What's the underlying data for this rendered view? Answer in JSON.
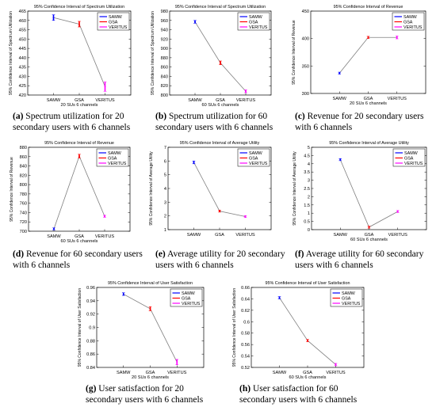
{
  "categories": [
    "SAMW",
    "GSA",
    "VERITUS"
  ],
  "colors": {
    "SAMW": "#0000ff",
    "GSA": "#ff0000",
    "VERITUS": "#ff00ff",
    "line": "#7f7f7f"
  },
  "legend": [
    "SAMW",
    "GSA",
    "VERITUS"
  ],
  "captions": [
    {
      "letter": "(a)",
      "text": "Spectrum utilization for 20 secondary users with 6 channels"
    },
    {
      "letter": "(b)",
      "text": "Spectrum utilization for 60 secondary users with 6 channels"
    },
    {
      "letter": "(c)",
      "text": "Revenue for 20 secondary users with 6 channels"
    },
    {
      "letter": "(d)",
      "text": "Revenue for 60 secondary users with 6 channels"
    },
    {
      "letter": "(e)",
      "text": "Average utility for 20 secondary users with 6 channels"
    },
    {
      "letter": "(f)",
      "text": "Average utility for 60 secondary users with 6 channels"
    },
    {
      "letter": "(g)",
      "text": "User satisfaction for 20 secondary users with 6 channels"
    },
    {
      "letter": "(h)",
      "text": "User satisfaction for 60 secondary users with 6 channels"
    }
  ],
  "chart_data": [
    {
      "type": "line",
      "title": "95% Confidence Interval of Spectrum Utilization",
      "ylabel": "95% Confidence Interval of Spectrum Utilization",
      "xlabel": "20 SUs 6 channels",
      "ylim": [
        420,
        465
      ],
      "yticks": [
        420,
        425,
        430,
        435,
        440,
        445,
        450,
        455,
        460,
        465
      ],
      "values": [
        461.5,
        458,
        424.5
      ],
      "err": [
        1.5,
        1.5,
        2.5
      ],
      "legend_position": "top-right"
    },
    {
      "type": "line",
      "title": "95% Confidence Interval of Spectrum Utilization",
      "ylabel": "95% Confidence Interval of Spectrum Utilization",
      "xlabel": "60 SUs 6 channels",
      "ylim": [
        800,
        980
      ],
      "yticks": [
        800,
        820,
        840,
        860,
        880,
        900,
        920,
        940,
        960,
        980
      ],
      "values": [
        957,
        869,
        808
      ],
      "err": [
        3,
        4,
        3
      ],
      "legend_position": "top-right"
    },
    {
      "type": "line",
      "title": "95% Confidence Interval of Revenue",
      "ylabel": "95% Confidence Interval of Revenue",
      "xlabel": "20 SUs 6 channels",
      "ylim": [
        300,
        450
      ],
      "yticks": [
        300,
        350,
        400,
        450
      ],
      "values": [
        337,
        402,
        402
      ],
      "err": [
        1,
        2,
        2.5
      ],
      "legend_position": "top-right"
    },
    {
      "type": "line",
      "title": "95% Confidence Interval of Revenue",
      "ylabel": "95% Confidence Interval of Revenue",
      "xlabel": "60 SUs 6 channels",
      "ylim": [
        700,
        880
      ],
      "yticks": [
        700,
        720,
        740,
        760,
        780,
        800,
        820,
        840,
        860,
        880
      ],
      "values": [
        705,
        861,
        732
      ],
      "err": [
        2,
        4,
        2
      ],
      "legend_position": "top-right"
    },
    {
      "type": "line",
      "title": "95% Confidence Interval of Average Utility",
      "ylabel": "95% Confidence Interval of Average Utility",
      "xlabel": "",
      "ylim": [
        1,
        7
      ],
      "yticks": [
        1,
        2,
        3,
        4,
        5,
        6,
        7
      ],
      "values": [
        5.9,
        2.35,
        1.95
      ],
      "err": [
        0.1,
        0.05,
        0.03
      ],
      "legend_position": "top-right"
    },
    {
      "type": "line",
      "title": "95% Confidence Interval of Average Utility",
      "ylabel": "95% Confidence Interval of Average Utility",
      "xlabel": "60 SUs 6 channels",
      "ylim": [
        0,
        5
      ],
      "yticks": [
        0,
        0.5,
        1,
        1.5,
        2,
        2.5,
        3,
        3.5,
        4,
        4.5,
        5
      ],
      "values": [
        4.25,
        0.15,
        1.1
      ],
      "err": [
        0.05,
        0.04,
        0.03
      ],
      "legend_position": "top-right"
    },
    {
      "type": "line",
      "title": "95% Confidence Interval of User Satisfaction",
      "ylabel": "95% Confidence Interval of User Satisfaction",
      "xlabel": "20 SUs 6 channels",
      "ylim": [
        0.84,
        0.96
      ],
      "yticks": [
        0.84,
        0.86,
        0.88,
        0.9,
        0.92,
        0.94,
        0.96
      ],
      "values": [
        0.95,
        0.928,
        0.848
      ],
      "err": [
        0.002,
        0.003,
        0.004
      ],
      "legend_position": "top-right"
    },
    {
      "type": "line",
      "title": "95% Confidence Interval of User Satisfaction",
      "ylabel": "95% Confidence Interval of User Satisfaction",
      "xlabel": "60 SUs 6 channels",
      "ylim": [
        0.52,
        0.66
      ],
      "yticks": [
        0.52,
        0.54,
        0.56,
        0.58,
        0.6,
        0.62,
        0.64,
        0.66
      ],
      "values": [
        0.642,
        0.567,
        0.525
      ],
      "err": [
        0.002,
        0.002,
        0.002
      ],
      "legend_position": "top-right"
    }
  ]
}
